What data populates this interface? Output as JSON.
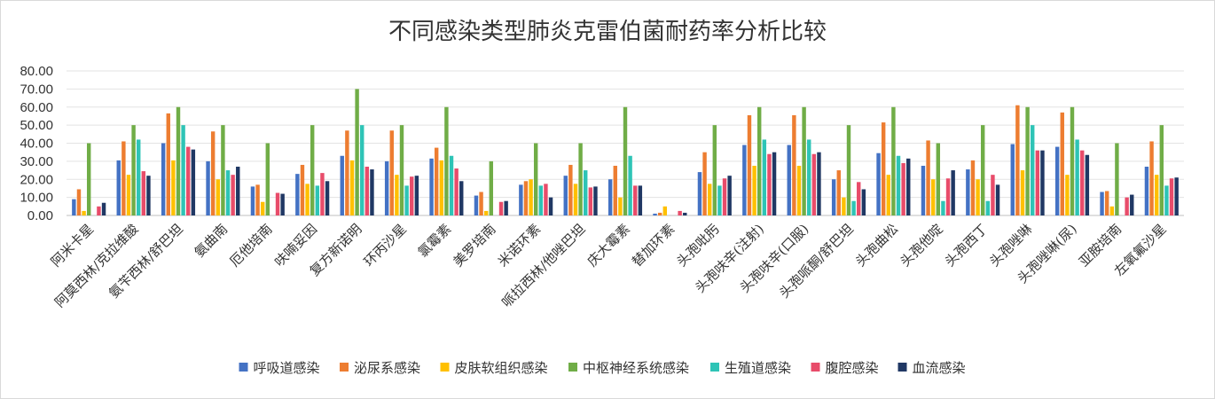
{
  "chart_data": {
    "type": "bar",
    "title": "不同感染类型肺炎克雷伯菌耐药率分析比较",
    "xlabel": "",
    "ylabel": "",
    "ylim": [
      0,
      80
    ],
    "yticks": [
      "0.00",
      "10.00",
      "20.00",
      "30.00",
      "40.00",
      "50.00",
      "60.00",
      "70.00",
      "80.00"
    ],
    "grid": true,
    "legend_position": "bottom",
    "categories": [
      "阿米卡星",
      "阿莫西林/克拉维酸",
      "氨苄西林/舒巴坦",
      "氨曲南",
      "厄他培南",
      "呋喃妥因",
      "复方新诺明",
      "环丙沙星",
      "氯霉素",
      "美罗培南",
      "米诺环素",
      "哌拉西林/他唑巴坦",
      "庆大霉素",
      "替加环素",
      "头孢吡肟",
      "头孢呋辛(注射)",
      "头孢呋辛(口服)",
      "头孢哌酮/舒巴坦",
      "头孢曲松",
      "头孢他啶",
      "头孢西丁",
      "头孢唑啉",
      "头孢唑啉(尿)",
      "亚胺培南",
      "左氧氟沙星"
    ],
    "series": [
      {
        "name": "呼吸道感染",
        "color": "#4472C4",
        "values": [
          9,
          30.5,
          40,
          30,
          16,
          23,
          33,
          30,
          31.5,
          11,
          17,
          22,
          20,
          1,
          24,
          39,
          39,
          20,
          34.5,
          27.5,
          25.5,
          39.5,
          38,
          13,
          27
        ]
      },
      {
        "name": "泌尿系感染",
        "color": "#ED7D31",
        "values": [
          14.5,
          41,
          56.5,
          46.5,
          17,
          28,
          47,
          47,
          37.5,
          13,
          19,
          28,
          27.5,
          1.5,
          35,
          55.5,
          55.5,
          25,
          51.5,
          41.5,
          30.5,
          61,
          57,
          13.5,
          41
        ]
      },
      {
        "name": "皮肤软组织感染",
        "color": "#FFC000",
        "values": [
          2.5,
          22.5,
          30.5,
          20,
          7.5,
          17.5,
          30.5,
          22.5,
          30.5,
          2.5,
          20,
          17.5,
          10,
          5,
          17.5,
          27.5,
          27.5,
          10,
          22.5,
          20,
          20,
          25,
          22.5,
          5,
          22.5
        ]
      },
      {
        "name": "中枢神经系统感染",
        "color": "#70AD47",
        "values": [
          40,
          50,
          60,
          50,
          40,
          50,
          70,
          50,
          60,
          30,
          40,
          40,
          60,
          0,
          50,
          60,
          60,
          50,
          60,
          40,
          50,
          60,
          60,
          40,
          50
        ]
      },
      {
        "name": "生殖道感染",
        "color": "#2EC4B6",
        "values": [
          0,
          42,
          50,
          25,
          0,
          16.5,
          50,
          16.5,
          33,
          0,
          16.5,
          25,
          33,
          0,
          16.5,
          42,
          42,
          8,
          33,
          8,
          8,
          50,
          42,
          0,
          16.5
        ]
      },
      {
        "name": "腹腔感染",
        "color": "#E84C6A",
        "values": [
          5,
          24.5,
          38,
          22.5,
          12.5,
          23.5,
          27,
          21.5,
          26,
          7.5,
          17.5,
          15.5,
          16.5,
          2.5,
          20.5,
          34,
          34,
          18.5,
          29,
          20.5,
          22.5,
          36,
          36,
          10,
          20.5
        ]
      },
      {
        "name": "血流感染",
        "color": "#203864",
        "values": [
          7,
          22,
          36.5,
          27,
          12,
          19,
          25.5,
          22,
          19,
          8,
          10,
          16,
          16.5,
          1.5,
          22,
          35,
          35,
          14.5,
          31.5,
          25,
          17,
          36,
          33.5,
          11.5,
          21
        ]
      }
    ]
  }
}
